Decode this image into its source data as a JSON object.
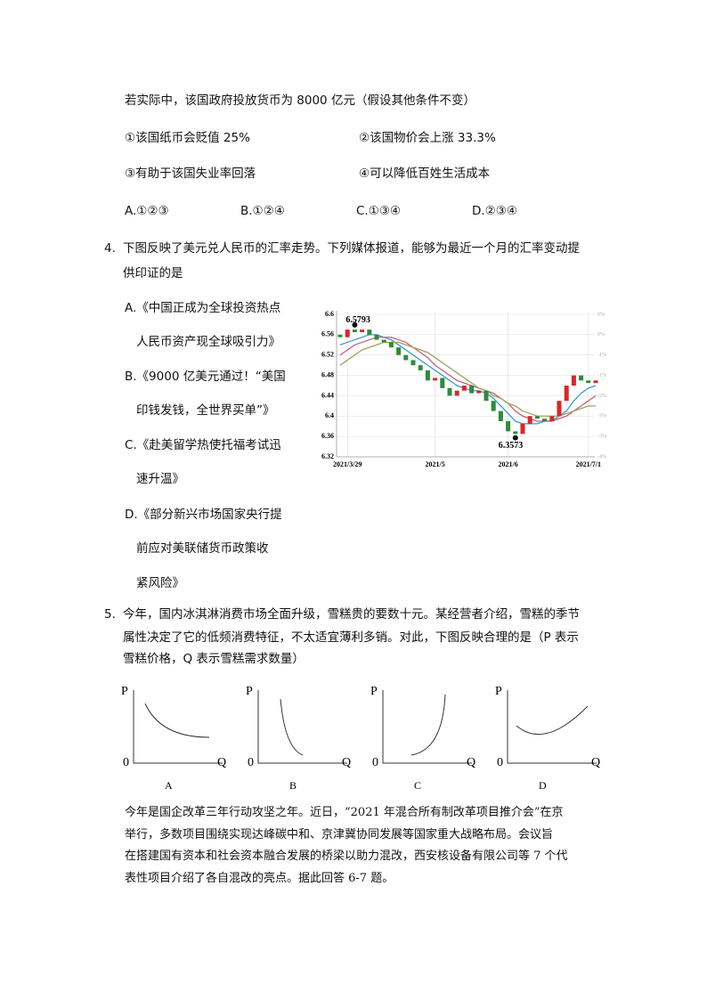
{
  "intro": {
    "text": "若实际中，该国政府投放货币为 8000 亿元（假设其他条件不变）",
    "statements": [
      "①该国纸币会贬值 25%",
      "②该国物价会上涨 33.3%",
      "③有助于该国失业率回落",
      "④可以降低百姓生活成本"
    ],
    "choices": [
      "A.①②③",
      "B.①②④",
      "C.①③④",
      "D.②③④"
    ]
  },
  "question4": {
    "number": "4.",
    "lines": [
      "下图反映了美元兑人民币的汇率走势。下列媒体报道，能够为最近一个月的汇率变动提",
      "供印证的是"
    ],
    "options": [
      "A.《中国正成为全球投资热点",
      "人民币资产现全球吸引力》",
      "B.《9000 亿美元通过！“美国",
      "印钱发钱，全世界买单”》",
      "C.《赴美留学热使托福考试迅",
      "速升温》",
      "D.《部分新兴市场国家央行提",
      "前应对美联储货币政策收",
      "紧风险》"
    ]
  },
  "chart": {
    "type": "candlestick",
    "categories": [
      null,
      "2021/3/29",
      null,
      null,
      null,
      null,
      null,
      null,
      null,
      null,
      null,
      null,
      null,
      "2021/5",
      null,
      null,
      null,
      null,
      null,
      null,
      null,
      null,
      null,
      "2021/6",
      null,
      null,
      null,
      null,
      null,
      null,
      null,
      null,
      null,
      null,
      "2021/7/1",
      null
    ],
    "open": [
      6.56,
      6.555,
      6.57,
      6.565,
      6.57,
      6.56,
      6.55,
      6.545,
      6.535,
      6.52,
      6.51,
      6.5,
      6.49,
      6.47,
      6.475,
      6.455,
      6.44,
      6.45,
      6.46,
      6.445,
      6.45,
      6.43,
      6.41,
      6.39,
      6.37,
      6.365,
      6.385,
      6.4,
      6.395,
      6.39,
      6.4,
      6.43,
      6.46,
      6.48,
      6.47,
      6.465
    ],
    "close": [
      6.555,
      6.57,
      6.565,
      6.57,
      6.56,
      6.55,
      6.545,
      6.535,
      6.52,
      6.51,
      6.5,
      6.49,
      6.47,
      6.475,
      6.455,
      6.44,
      6.45,
      6.46,
      6.445,
      6.45,
      6.43,
      6.41,
      6.39,
      6.37,
      6.365,
      6.385,
      6.4,
      6.395,
      6.39,
      6.4,
      6.43,
      6.46,
      6.48,
      6.47,
      6.465,
      6.47
    ],
    "up_color": "#d9262c",
    "down_color": "#2e8b3a",
    "series": [
      {
        "color": "#3a9ad9",
        "values": [
          6.54,
          6.545,
          6.55,
          6.555,
          6.56,
          6.56,
          6.555,
          6.55,
          6.54,
          6.53,
          6.52,
          6.51,
          6.5,
          6.49,
          6.48,
          6.47,
          6.46,
          6.455,
          6.45,
          6.45,
          6.445,
          6.435,
          6.42,
          6.405,
          6.39,
          6.385,
          6.385,
          6.385,
          6.39,
          6.39,
          6.4,
          6.41,
          6.43,
          6.445,
          6.455,
          6.46
        ]
      },
      {
        "color": "#c8607a",
        "values": [
          6.52,
          6.53,
          6.54,
          6.545,
          6.55,
          6.555,
          6.555,
          6.555,
          6.55,
          6.545,
          6.535,
          6.525,
          6.515,
          6.5,
          6.49,
          6.48,
          6.47,
          6.465,
          6.46,
          6.455,
          6.45,
          6.445,
          6.435,
          6.425,
          6.41,
          6.4,
          6.395,
          6.39,
          6.39,
          6.39,
          6.395,
          6.4,
          6.41,
          6.42,
          6.43,
          6.44
        ]
      },
      {
        "color": "#9aa55a",
        "values": [
          6.5,
          6.51,
          6.52,
          6.53,
          6.535,
          6.54,
          6.545,
          6.545,
          6.545,
          6.54,
          6.535,
          6.53,
          6.525,
          6.515,
          6.505,
          6.495,
          6.485,
          6.475,
          6.465,
          6.455,
          6.45,
          6.44,
          6.435,
          6.425,
          6.42,
          6.41,
          6.405,
          6.4,
          6.4,
          6.4,
          6.4,
          6.405,
          6.41,
          6.415,
          6.42,
          6.42
        ]
      }
    ],
    "ylim": [
      6.32,
      6.6
    ],
    "yticks": [
      {
        "value": 6.6,
        "label": "6.6"
      },
      6.56,
      6.52,
      6.48,
      6.44,
      {
        "value": 6.4,
        "label": "6.4"
      },
      6.36,
      6.32
    ],
    "right_labels": [
      "0%",
      "0%",
      "-1%",
      "-1%",
      "-2%",
      "-3%",
      "-3%",
      "-4%"
    ],
    "annotations": [
      {
        "index": 2,
        "value": 6.5793,
        "label": "6.5793"
      },
      {
        "index": 24,
        "value": 6.3573,
        "label": "6.3573"
      }
    ]
  },
  "question5": {
    "number": "5.",
    "lines": [
      "今年，国内冰淇淋消费市场全面升级，雪糕贵的要数十元。某经营者介绍，雪糕的季节",
      "属性决定了它的低频消费特征，不太适宜薄利多销。对此，下图反映合理的是（P 表示",
      "雪糕价格，Q 表示雪糕需求数量）"
    ],
    "diagrams": [
      {
        "p": "P",
        "q": "Q",
        "origin": "0",
        "caption": "A"
      },
      {
        "p": "P",
        "q": "Q",
        "origin": "0",
        "caption": "B"
      },
      {
        "p": "P",
        "q": "Q",
        "origin": "0",
        "caption": "C"
      },
      {
        "p": "P",
        "q": "Q",
        "origin": "0",
        "caption": "D"
      }
    ]
  },
  "passage": {
    "lines": [
      "今年是国企改革三年行动攻坚之年。近日，“2021 年混合所有制改革项目推介会”在京",
      "举行，多数项目围绕实现达峰碳中和、京津冀协同发展等国家重大战略布局。会议旨",
      "在搭建国有资本和社会资本融合发展的桥梁以助力混改，西安核设备有限公司等 7 个代",
      "表性项目介绍了各自混改的亮点。据此回答 6-7 题。"
    ]
  }
}
